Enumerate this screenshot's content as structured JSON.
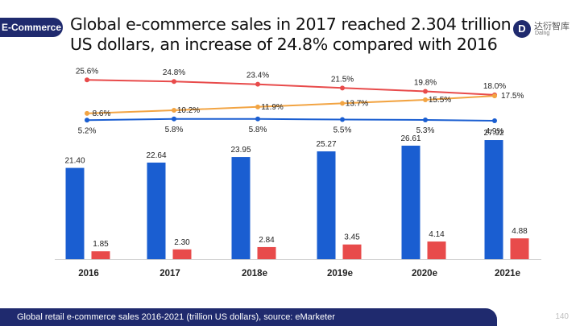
{
  "tag": "E-Commerce",
  "title": "Global e-commerce sales in 2017 reached 2.304 trillion US dollars, an increase of 24.8% compared with 2016",
  "logo": {
    "cn": "达衍智库",
    "en": "Dalng"
  },
  "footer": "Global retail e-commerce sales 2016-2021 (trillion US dollars), source: eMarketer",
  "page_number": "140",
  "colors": {
    "blue": "#1a5ed1",
    "red": "#e84b4b",
    "orange": "#f2a443",
    "navy": "#1f2a6e"
  },
  "chart_data": {
    "type": "bar",
    "categories": [
      "2016",
      "2017",
      "2018e",
      "2019e",
      "2020e",
      "2021e"
    ],
    "series": [
      {
        "values": [
          21.4,
          22.64,
          23.95,
          25.27,
          26.61,
          27.92
        ],
        "labels": [
          "21.40",
          "22.64",
          "23.95",
          "25.27",
          "26.61",
          "27.92"
        ]
      },
      {
        "values": [
          1.85,
          2.3,
          2.84,
          3.45,
          4.14,
          4.88
        ],
        "labels": [
          "1.85",
          "2.30",
          "2.84",
          "3.45",
          "4.14",
          "4.88"
        ]
      }
    ],
    "lines": [
      {
        "values": [
          25.6,
          24.8,
          23.4,
          21.5,
          19.8,
          18.0
        ],
        "labels": [
          "25.6%",
          "24.8%",
          "23.4%",
          "21.5%",
          "19.8%",
          "18.0%"
        ]
      },
      {
        "values": [
          8.6,
          10.2,
          11.9,
          13.7,
          15.5,
          17.5
        ],
        "labels": [
          "8.6%",
          "10.2%",
          "11.9%",
          "13.7%",
          "15.5%",
          "17.5%"
        ]
      },
      {
        "values": [
          5.2,
          5.8,
          5.8,
          5.5,
          5.3,
          4.9
        ],
        "labels": [
          "5.2%",
          "5.8%",
          "5.8%",
          "5.5%",
          "5.3%",
          "4.9%"
        ]
      }
    ],
    "ylim": [
      0,
      30
    ]
  }
}
